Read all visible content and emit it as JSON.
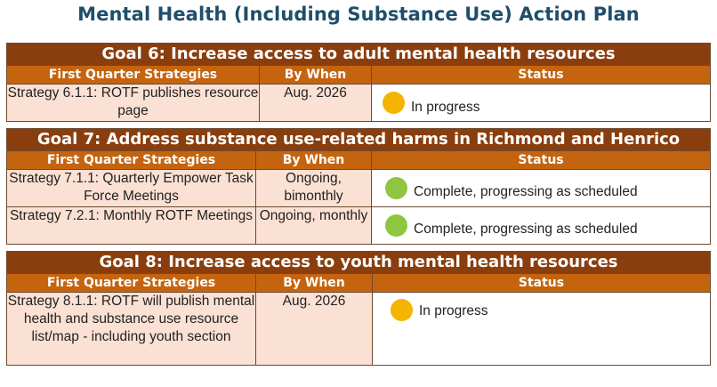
{
  "title": "Mental Health (Including Substance Use) Action Plan",
  "column_headers": {
    "strategies": "First Quarter Strategies",
    "by_when": "By When",
    "status": "Status"
  },
  "status_colors": {
    "in_progress": "#f5b400",
    "complete": "#8ec63f"
  },
  "goals": [
    {
      "title": "Goal 6: Increase access to adult mental health resources",
      "rows": [
        {
          "strategy": "Strategy 6.1.1: ROTF publishes resource page",
          "by_when": "Aug. 2026",
          "status": "In progress",
          "status_icon": "yellow-circle"
        }
      ]
    },
    {
      "title": "Goal 7: Address substance use-related harms in Richmond and Henrico",
      "rows": [
        {
          "strategy": "Strategy 7.1.1: Quarterly Empower Task Force Meetings",
          "by_when": "Ongoing, bimonthly",
          "status": "Complete, progressing as scheduled",
          "status_icon": "green-circle"
        },
        {
          "strategy": "Strategy 7.2.1: Monthly ROTF Meetings",
          "by_when": "Ongoing, monthly",
          "status": "Complete, progressing as scheduled",
          "status_icon": "green-circle"
        }
      ]
    },
    {
      "title": "Goal 8: Increase access to youth mental health resources",
      "rows": [
        {
          "strategy": "Strategy 8.1.1: ROTF will publish mental health and substance use resource list/map - including youth section",
          "by_when": "Aug. 2026",
          "status": "In progress",
          "status_icon": "yellow-circle"
        }
      ]
    }
  ]
}
